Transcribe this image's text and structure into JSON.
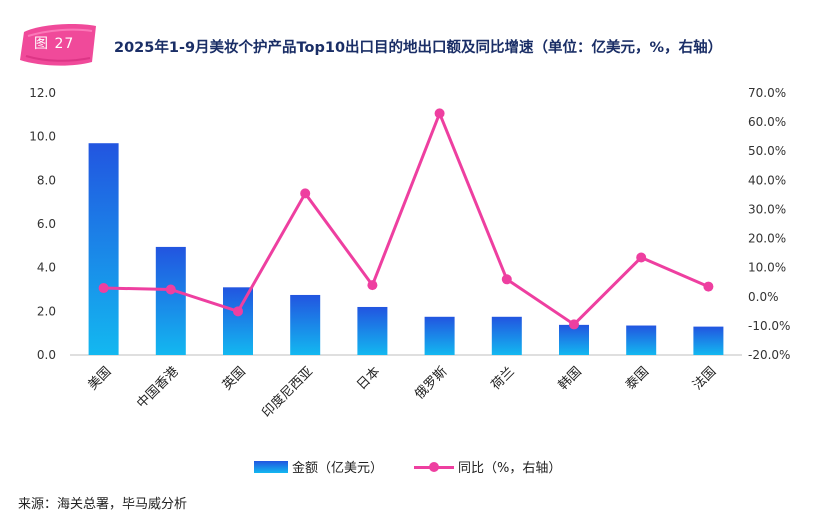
{
  "header": {
    "figure_label": "图 27",
    "title": "2025年1-9月美妆个护产品Top10出口目的地出口额及同比增速（单位：亿美元，%，右轴）"
  },
  "chart_data": {
    "type": "bar",
    "categories": [
      "美国",
      "中国香港",
      "英国",
      "印度尼西亚",
      "日本",
      "俄罗斯",
      "荷兰",
      "韩国",
      "泰国",
      "法国"
    ],
    "series": [
      {
        "name": "金额（亿美元）",
        "type": "bar",
        "axis": "left",
        "values": [
          9.7,
          4.95,
          3.1,
          2.75,
          2.2,
          1.75,
          1.75,
          1.38,
          1.35,
          1.3
        ]
      },
      {
        "name": "同比（%，右轴）",
        "type": "line",
        "axis": "right",
        "values": [
          3.0,
          2.5,
          -5.0,
          35.5,
          4.0,
          63.0,
          6.0,
          -9.5,
          13.5,
          3.5
        ]
      }
    ],
    "left_axis": {
      "min": 0,
      "max": 12,
      "ticks": [
        "0.0",
        "2.0",
        "4.0",
        "6.0",
        "8.0",
        "10.0",
        "12.0"
      ]
    },
    "right_axis": {
      "min": -20,
      "max": 70,
      "ticks": [
        "-20.0%",
        "-10.0%",
        "0.0%",
        "10.0%",
        "20.0%",
        "30.0%",
        "40.0%",
        "50.0%",
        "60.0%",
        "70.0%"
      ]
    },
    "legend_position": "bottom",
    "colors": {
      "bar_top": "#2255e0",
      "bar_bottom": "#13b8f0",
      "line": "#ee3fa0"
    }
  },
  "legend": {
    "bar_label": "金额（亿美元）",
    "line_label": "同比（%，右轴）"
  },
  "footer": {
    "source": "来源：海关总署，毕马威分析"
  }
}
